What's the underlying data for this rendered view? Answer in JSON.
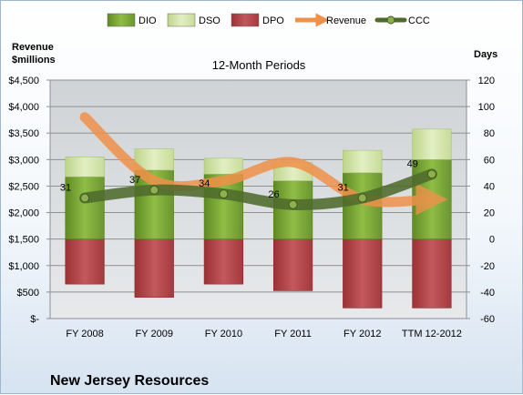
{
  "chart_data": {
    "type": "bar",
    "title": "12-Month Periods",
    "company": "New Jersey Resources",
    "left_axis_label": [
      "Revenue",
      "$millions"
    ],
    "right_axis_label": "Days",
    "left_ticks": [
      "$-",
      "$500",
      "$1,000",
      "$1,500",
      "$2,000",
      "$2,500",
      "$3,000",
      "$3,500",
      "$4,000",
      "$4,500"
    ],
    "right_ticks": [
      "-60",
      "-40",
      "-20",
      "0",
      "20",
      "40",
      "60",
      "80",
      "100",
      "120"
    ],
    "left_range": [
      0,
      4500
    ],
    "right_range": [
      -60,
      120
    ],
    "categories": [
      "FY 2008",
      "FY 2009",
      "FY 2010",
      "FY 2011",
      "FY 2012",
      "TTM 12-2012"
    ],
    "legend": [
      "DIO",
      "DSO",
      "DPO",
      "Revenue",
      "CCC"
    ],
    "series": [
      {
        "name": "DIO",
        "axis": "days",
        "values": [
          47,
          52,
          49,
          44,
          50,
          60
        ]
      },
      {
        "name": "DSO",
        "axis": "days",
        "values": [
          15,
          16,
          12,
          14,
          17,
          23
        ]
      },
      {
        "name": "DPO",
        "axis": "days",
        "values": [
          -34,
          -44,
          -34,
          -39,
          -52,
          -52
        ]
      },
      {
        "name": "Revenue",
        "axis": "revenue",
        "values": [
          3800,
          2600,
          2600,
          2950,
          2250,
          2250
        ]
      },
      {
        "name": "CCC",
        "axis": "days",
        "values": [
          31,
          37,
          34,
          26,
          31,
          49
        ]
      }
    ],
    "ccc_labels": [
      "31",
      "37",
      "34",
      "26",
      "31",
      "49"
    ],
    "colors": {
      "DIO": "#7fa83a",
      "DSO": "#d9e8b0",
      "DPO": "#b8484c",
      "Revenue": "#f0914a",
      "CCC": "#4e6b2c"
    },
    "grid": true,
    "legend_position": "top"
  }
}
